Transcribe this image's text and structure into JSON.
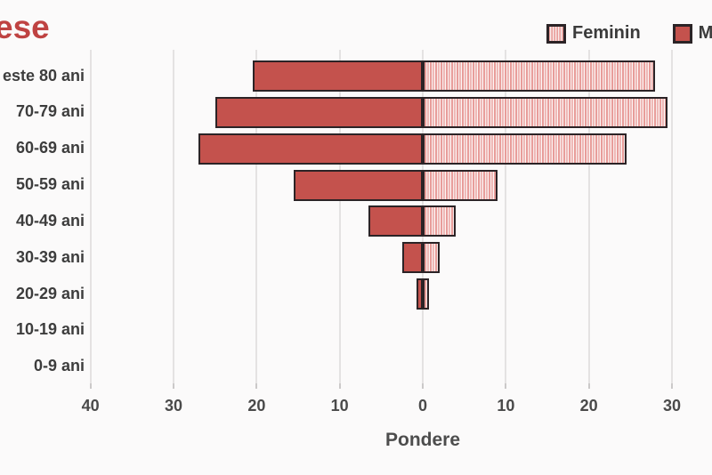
{
  "title": {
    "text": "ese",
    "note": "title cropped at left frame edge",
    "color": "#bf4342"
  },
  "legend": {
    "items": [
      {
        "label": "Feminin",
        "swatch": "striped-pink"
      },
      {
        "label": "Ma",
        "swatch": "solid-red"
      }
    ]
  },
  "chart_data": {
    "type": "bar",
    "subtype": "population-pyramid",
    "orientation": "horizontal",
    "categories": [
      "este 80 ani",
      "70-79 ani",
      "60-69 ani",
      "50-59 ani",
      "40-49 ani",
      "30-39 ani",
      "20-29 ani",
      "10-19 ani",
      "0-9 ani"
    ],
    "series": [
      {
        "name": "masculin",
        "side": "left",
        "values": [
          20.5,
          25,
          27,
          15.5,
          6.5,
          2.5,
          0.8,
          0,
          0
        ]
      },
      {
        "name": "feminin",
        "side": "right",
        "values": [
          28,
          29.5,
          24.5,
          9,
          4,
          2,
          0.8,
          0,
          0
        ]
      }
    ],
    "xlabel": "Pondere",
    "x_ticks": [
      -40,
      -30,
      -20,
      -10,
      0,
      10,
      20,
      30
    ],
    "x_tick_labels": [
      "40",
      "30",
      "20",
      "10",
      "0",
      "10",
      "20",
      "30"
    ],
    "xlim": [
      -42,
      32
    ],
    "grid": "vertical"
  },
  "colors": {
    "masculin_fill": "#c4524d",
    "feminin_stripe_pink": "#efb9b7",
    "feminin_stripe_dark": "#e89d9a",
    "feminin_stripe_light": "#f8eae9",
    "bar_border": "#2b2326",
    "gridline": "#e4e2e2",
    "axis_text": "#4a4a4a",
    "title_red": "#bf4342",
    "background": "#fbfafa"
  }
}
